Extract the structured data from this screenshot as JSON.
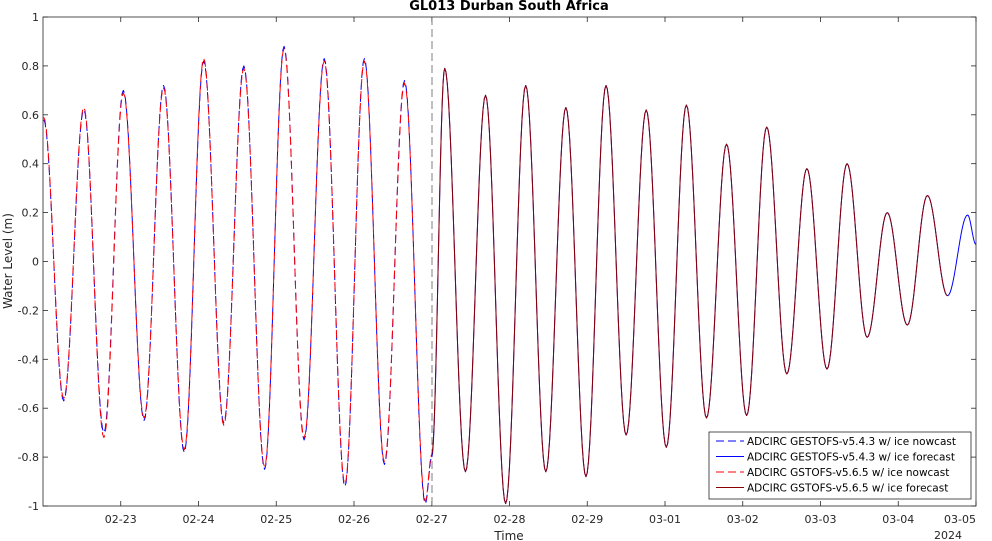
{
  "chart_data": {
    "type": "line",
    "title": "GL013 Durban South Africa",
    "xlabel": "Time",
    "ylabel": "Water Level (m)",
    "ylim": [
      -1,
      1
    ],
    "xlim": [
      "2024-02-22T00:00",
      "2024-03-05T00:00"
    ],
    "y_ticks": [
      -1,
      -0.8,
      -0.6,
      -0.4,
      -0.2,
      0,
      0.2,
      0.4,
      0.6,
      0.8,
      1
    ],
    "y_tick_labels": [
      "-1",
      "-0.8",
      "-0.6",
      "-0.4",
      "-0.2",
      "0",
      "0.2",
      "0.4",
      "0.6",
      "0.8",
      "1"
    ],
    "x_ticks": [
      "2024-02-23",
      "2024-02-24",
      "2024-02-25",
      "2024-02-26",
      "2024-02-27",
      "2024-02-28",
      "2024-02-29",
      "2024-03-01",
      "2024-03-02",
      "2024-03-03",
      "2024-03-04",
      "2024-03-05"
    ],
    "x_tick_labels": [
      "02-23",
      "02-24",
      "02-25",
      "02-26",
      "02-27",
      "02-28",
      "02-29",
      "03-01",
      "03-02",
      "03-03",
      "03-04",
      "03-05"
    ],
    "x_year_label": "2024",
    "nowcast_end": "2024-02-27T00:00",
    "grid": false,
    "legend_position": "bottom-right",
    "series": [
      {
        "name": "ADCIRC GESTOFS-v5.4.3 w/ ice nowcast",
        "color": "#0000ff",
        "style": "dashed",
        "extrema": [
          [
            "2024-02-22T00:12",
            0.58
          ],
          [
            "2024-02-22T06:24",
            -0.57
          ],
          [
            "2024-02-22T12:36",
            0.62
          ],
          [
            "2024-02-22T18:48",
            -0.7
          ],
          [
            "2024-02-23T00:48",
            0.7
          ],
          [
            "2024-02-23T07:12",
            -0.65
          ],
          [
            "2024-02-23T13:12",
            0.72
          ],
          [
            "2024-02-23T19:36",
            -0.78
          ],
          [
            "2024-02-24T01:36",
            0.82
          ],
          [
            "2024-02-24T07:48",
            -0.66
          ],
          [
            "2024-02-24T14:00",
            0.8
          ],
          [
            "2024-02-24T20:24",
            -0.85
          ],
          [
            "2024-02-25T02:24",
            0.88
          ],
          [
            "2024-02-25T08:36",
            -0.73
          ],
          [
            "2024-02-25T14:48",
            0.83
          ],
          [
            "2024-02-25T21:12",
            -0.92
          ],
          [
            "2024-02-26T03:12",
            0.83
          ],
          [
            "2024-02-26T09:24",
            -0.83
          ],
          [
            "2024-02-26T15:36",
            0.74
          ],
          [
            "2024-02-26T22:00",
            -0.99
          ],
          [
            "2024-02-27T00:00",
            -0.8
          ]
        ]
      },
      {
        "name": "ADCIRC GESTOFS-v5.4.3 w/ ice forecast",
        "color": "#0000ff",
        "style": "solid",
        "extrema": [
          [
            "2024-02-27T00:00",
            -0.8
          ],
          [
            "2024-02-27T04:00",
            0.79
          ],
          [
            "2024-02-27T10:24",
            -0.86
          ],
          [
            "2024-02-27T16:36",
            0.68
          ],
          [
            "2024-02-27T22:48",
            -0.99
          ],
          [
            "2024-02-28T05:00",
            0.72
          ],
          [
            "2024-02-28T11:12",
            -0.86
          ],
          [
            "2024-02-28T17:24",
            0.63
          ],
          [
            "2024-02-28T23:36",
            -0.88
          ],
          [
            "2024-02-29T05:48",
            0.72
          ],
          [
            "2024-02-29T12:00",
            -0.71
          ],
          [
            "2024-02-29T18:12",
            0.62
          ],
          [
            "2024-03-01T00:24",
            -0.76
          ],
          [
            "2024-03-01T06:36",
            0.64
          ],
          [
            "2024-03-01T12:48",
            -0.64
          ],
          [
            "2024-03-01T19:00",
            0.48
          ],
          [
            "2024-03-02T01:12",
            -0.63
          ],
          [
            "2024-03-02T07:24",
            0.55
          ],
          [
            "2024-03-02T13:36",
            -0.46
          ],
          [
            "2024-03-02T19:48",
            0.38
          ],
          [
            "2024-03-03T02:00",
            -0.44
          ],
          [
            "2024-03-03T08:12",
            0.4
          ],
          [
            "2024-03-03T14:24",
            -0.31
          ],
          [
            "2024-03-03T20:36",
            0.2
          ],
          [
            "2024-03-04T02:48",
            -0.26
          ],
          [
            "2024-03-04T09:00",
            0.27
          ],
          [
            "2024-03-04T15:12",
            -0.14
          ],
          [
            "2024-03-04T21:24",
            0.19
          ],
          [
            "2024-03-05T00:00",
            0.07
          ]
        ]
      },
      {
        "name": "ADCIRC GSTOFS-v5.6.5 w/ ice nowcast",
        "color": "#ff0000",
        "style": "dashed",
        "extrema": [
          [
            "2024-02-22T00:12",
            0.59
          ],
          [
            "2024-02-22T06:24",
            -0.56
          ],
          [
            "2024-02-22T12:36",
            0.63
          ],
          [
            "2024-02-22T18:48",
            -0.72
          ],
          [
            "2024-02-23T00:48",
            0.69
          ],
          [
            "2024-02-23T07:12",
            -0.64
          ],
          [
            "2024-02-23T13:12",
            0.71
          ],
          [
            "2024-02-23T19:36",
            -0.77
          ],
          [
            "2024-02-24T01:36",
            0.83
          ],
          [
            "2024-02-24T07:48",
            -0.67
          ],
          [
            "2024-02-24T14:00",
            0.79
          ],
          [
            "2024-02-24T20:24",
            -0.84
          ],
          [
            "2024-02-25T02:24",
            0.87
          ],
          [
            "2024-02-25T08:36",
            -0.72
          ],
          [
            "2024-02-25T14:48",
            0.82
          ],
          [
            "2024-02-25T21:12",
            -0.91
          ],
          [
            "2024-02-26T03:12",
            0.82
          ],
          [
            "2024-02-26T09:24",
            -0.82
          ],
          [
            "2024-02-26T15:36",
            0.73
          ],
          [
            "2024-02-26T22:00",
            -0.98
          ],
          [
            "2024-02-27T00:00",
            -0.79
          ]
        ]
      },
      {
        "name": "ADCIRC GSTOFS-v5.6.5 w/ ice forecast",
        "color": "#8b0000",
        "style": "solid",
        "extrema": [
          [
            "2024-02-27T00:00",
            -0.79
          ],
          [
            "2024-02-27T04:00",
            0.79
          ],
          [
            "2024-02-27T10:24",
            -0.86
          ],
          [
            "2024-02-27T16:36",
            0.68
          ],
          [
            "2024-02-27T22:48",
            -0.99
          ],
          [
            "2024-02-28T05:00",
            0.72
          ],
          [
            "2024-02-28T11:12",
            -0.86
          ],
          [
            "2024-02-28T17:24",
            0.63
          ],
          [
            "2024-02-28T23:36",
            -0.88
          ],
          [
            "2024-02-29T05:48",
            0.72
          ],
          [
            "2024-02-29T12:00",
            -0.71
          ],
          [
            "2024-02-29T18:12",
            0.62
          ],
          [
            "2024-03-01T00:24",
            -0.76
          ],
          [
            "2024-03-01T06:36",
            0.64
          ],
          [
            "2024-03-01T12:48",
            -0.64
          ],
          [
            "2024-03-01T19:00",
            0.48
          ],
          [
            "2024-03-02T01:12",
            -0.63
          ],
          [
            "2024-03-02T07:24",
            0.55
          ],
          [
            "2024-03-02T13:36",
            -0.46
          ],
          [
            "2024-03-02T19:48",
            0.38
          ],
          [
            "2024-03-03T02:00",
            -0.44
          ],
          [
            "2024-03-03T08:12",
            0.4
          ],
          [
            "2024-03-03T14:24",
            -0.31
          ],
          [
            "2024-03-03T20:36",
            0.2
          ],
          [
            "2024-03-04T02:48",
            -0.26
          ],
          [
            "2024-03-04T09:00",
            0.27
          ],
          [
            "2024-03-04T15:12",
            -0.14
          ]
        ]
      }
    ]
  }
}
